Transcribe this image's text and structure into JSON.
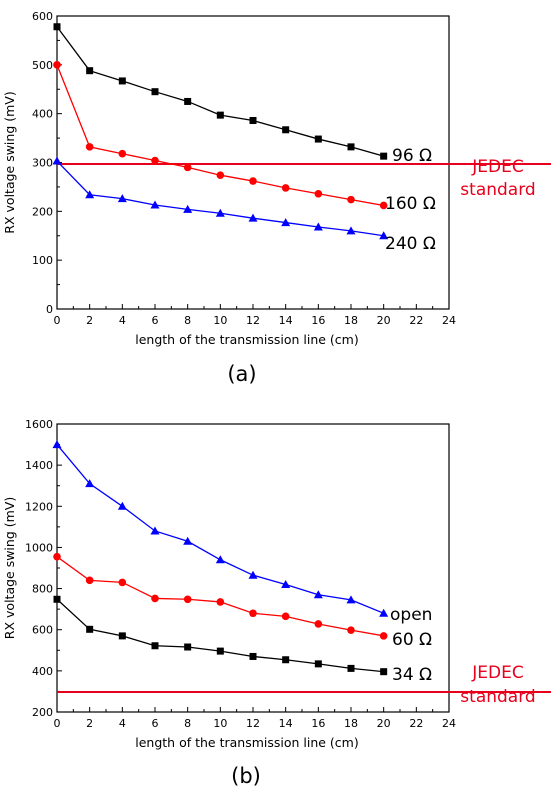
{
  "chart_data": [
    {
      "type": "line",
      "subplot_label": "(a)",
      "xlabel": "length of the transmission line (cm)",
      "ylabel": "RX voltage swing (mV)",
      "xlim": [
        0,
        24
      ],
      "ylim": [
        0,
        600
      ],
      "xticks": [
        0,
        2,
        4,
        6,
        8,
        10,
        12,
        14,
        16,
        18,
        20,
        22,
        24
      ],
      "yticks": [
        0,
        100,
        200,
        300,
        400,
        500,
        600
      ],
      "x": [
        0,
        2,
        4,
        6,
        8,
        10,
        12,
        14,
        16,
        18,
        20
      ],
      "series": [
        {
          "name": "96 Ω",
          "color": "#000000",
          "marker": "square",
          "values": [
            578,
            488,
            467,
            445,
            425,
            397,
            386,
            367,
            348,
            332,
            313
          ]
        },
        {
          "name": "160 Ω",
          "color": "#ff0000",
          "marker": "circle",
          "values": [
            500,
            332,
            318,
            304,
            290,
            274,
            262,
            248,
            236,
            224,
            212
          ]
        },
        {
          "name": "240 Ω",
          "color": "#0000ff",
          "marker": "triangle",
          "values": [
            303,
            234,
            226,
            213,
            204,
            196,
            186,
            177,
            168,
            160,
            150
          ]
        }
      ],
      "reference": {
        "value": 297,
        "color": "#e8001c",
        "label_lines": [
          "JEDEC",
          "standard"
        ]
      }
    },
    {
      "type": "line",
      "subplot_label": "(b)",
      "xlabel": "length of the transmission line (cm)",
      "ylabel": "RX voltage swing (mV)",
      "xlim": [
        0,
        24
      ],
      "ylim": [
        200,
        1600
      ],
      "xticks": [
        0,
        2,
        4,
        6,
        8,
        10,
        12,
        14,
        16,
        18,
        20,
        22,
        24
      ],
      "yticks": [
        200,
        400,
        600,
        800,
        1000,
        1200,
        1400,
        1600
      ],
      "x": [
        0,
        2,
        4,
        6,
        8,
        10,
        12,
        14,
        16,
        18,
        20
      ],
      "series": [
        {
          "name": "open",
          "color": "#0000ff",
          "marker": "triangle",
          "values": [
            1500,
            1310,
            1200,
            1080,
            1030,
            940,
            865,
            820,
            770,
            745,
            680
          ]
        },
        {
          "name": "60 Ω",
          "color": "#ff0000",
          "marker": "circle",
          "values": [
            955,
            840,
            830,
            752,
            748,
            735,
            680,
            665,
            628,
            598,
            570
          ]
        },
        {
          "name": "34 Ω",
          "color": "#000000",
          "marker": "square",
          "values": [
            748,
            602,
            570,
            522,
            516,
            496,
            470,
            454,
            434,
            412,
            396
          ]
        }
      ],
      "reference": {
        "value": 297,
        "color": "#e8001c",
        "label_lines": [
          "JEDEC",
          "standard"
        ]
      }
    }
  ]
}
